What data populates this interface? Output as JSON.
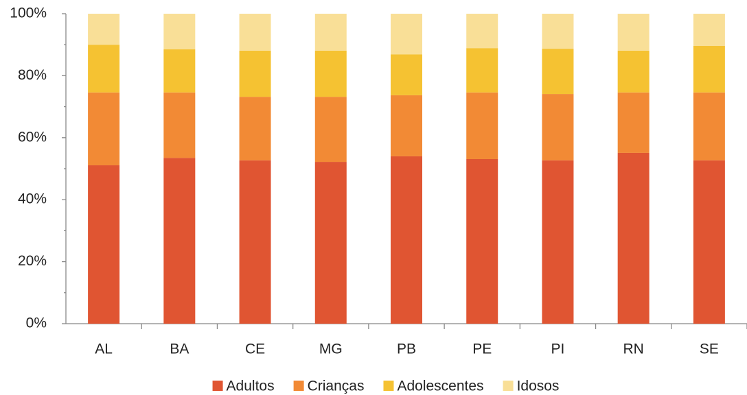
{
  "chart_data": {
    "type": "stacked_bar",
    "categories": [
      "AL",
      "BA",
      "CE",
      "MG",
      "PB",
      "PE",
      "PI",
      "RN",
      "SE"
    ],
    "series": [
      {
        "name": "Adultos",
        "color": "#e05532",
        "values": [
          51.1,
          53.5,
          52.7,
          52.2,
          54.0,
          53.1,
          52.7,
          55.1,
          52.7
        ]
      },
      {
        "name": "Crianças",
        "color": "#f28a35",
        "values": [
          23.5,
          21.1,
          20.5,
          21.0,
          19.7,
          21.5,
          21.4,
          19.5,
          21.9
        ]
      },
      {
        "name": "Adolescentes",
        "color": "#f5c232",
        "values": [
          15.4,
          13.9,
          14.9,
          14.9,
          13.2,
          14.3,
          14.6,
          13.5,
          15.0
        ]
      },
      {
        "name": "Idosos",
        "color": "#f9df97",
        "values": [
          10.0,
          11.5,
          11.9,
          11.9,
          13.1,
          11.1,
          11.3,
          11.9,
          10.4
        ]
      }
    ],
    "ylim": [
      0,
      100
    ],
    "yticks": [
      {
        "value": 0,
        "label": "0%"
      },
      {
        "value": 20,
        "label": "20%"
      },
      {
        "value": 40,
        "label": "40%"
      },
      {
        "value": 60,
        "label": "60%"
      },
      {
        "value": 80,
        "label": "80%"
      },
      {
        "value": 100,
        "label": "100%"
      }
    ],
    "legend": "bottom"
  }
}
